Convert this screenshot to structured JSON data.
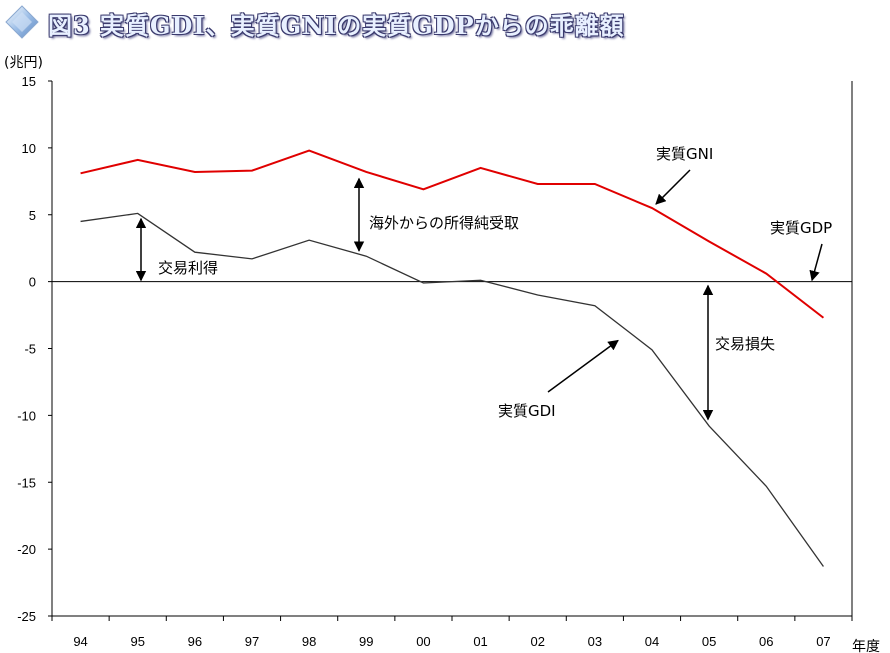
{
  "title": "図3 実質GDI、実質GNIの実質GDPからの乖離額",
  "chart_data": {
    "type": "line",
    "title": "図3 実質GDI、実質GNIの実質GDPからの乖離額",
    "ylabel": "(兆円)",
    "xlabel": "年度",
    "ylim": [
      -25,
      15
    ],
    "yticks": [
      15,
      10,
      5,
      0,
      -5,
      -10,
      -15,
      -20,
      -25
    ],
    "categories": [
      "94",
      "95",
      "96",
      "97",
      "98",
      "99",
      "00",
      "01",
      "02",
      "03",
      "04",
      "05",
      "06",
      "07"
    ],
    "series": [
      {
        "name": "実質GNI",
        "color": "#e00000",
        "values": [
          8.1,
          9.1,
          8.2,
          8.3,
          9.8,
          8.2,
          6.9,
          8.5,
          7.3,
          7.3,
          5.5,
          3.0,
          0.6,
          -2.7
        ]
      },
      {
        "name": "実質GDI",
        "color": "#333333",
        "values": [
          4.5,
          5.1,
          2.2,
          1.7,
          3.1,
          1.9,
          -0.1,
          0.1,
          -1.0,
          -1.8,
          -5.1,
          -10.8,
          -15.3,
          -21.3
        ]
      }
    ],
    "annotations": {
      "gni_label": "実質GNI",
      "gdp_label": "実質GDP",
      "gdi_label": "実質GDI",
      "trade_gain": "交易利得",
      "trade_loss": "交易損失",
      "income_abroad": "海外からの所得純受取"
    },
    "grid": false
  }
}
